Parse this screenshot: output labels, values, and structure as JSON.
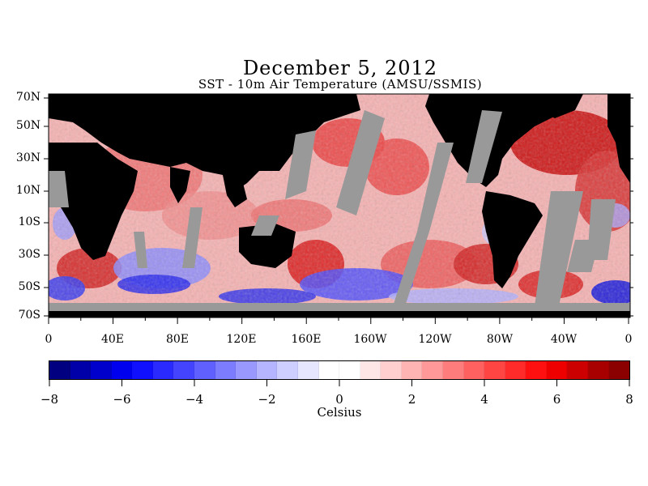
{
  "title": "December 5, 2012",
  "subtitle": "SST - 10m Air Temperature (AMSU/SSMIS)",
  "map": {
    "lat_labels": [
      "70N",
      "50N",
      "30N",
      "10N",
      "10S",
      "30S",
      "50S",
      "70S"
    ],
    "lon_labels": [
      "0",
      "40E",
      "80E",
      "120E",
      "160E",
      "160W",
      "120W",
      "80W",
      "40W",
      "0"
    ],
    "colors": {
      "land": "#000000",
      "missing": "#999999",
      "warm": "#e61919",
      "cold": "#1a1aff"
    }
  },
  "colorbar": {
    "min": -8,
    "max": 8,
    "tick_labels": [
      "−8",
      "−6",
      "−4",
      "−2",
      "0",
      "2",
      "4",
      "6",
      "8"
    ],
    "unit": "Celsius",
    "colors": [
      "#000080",
      "#0000a8",
      "#0000cc",
      "#0000ee",
      "#1010ff",
      "#2a2aff",
      "#4444ff",
      "#6060ff",
      "#7c7cff",
      "#9898ff",
      "#b4b4ff",
      "#ceceff",
      "#e6e6ff",
      "#ffffff",
      "#ffffff",
      "#ffe6e6",
      "#ffcece",
      "#ffb4b4",
      "#ff9898",
      "#ff7c7c",
      "#ff6060",
      "#ff4444",
      "#ff2a2a",
      "#ff1010",
      "#ee0000",
      "#cc0000",
      "#a80000",
      "#8b0000"
    ]
  }
}
